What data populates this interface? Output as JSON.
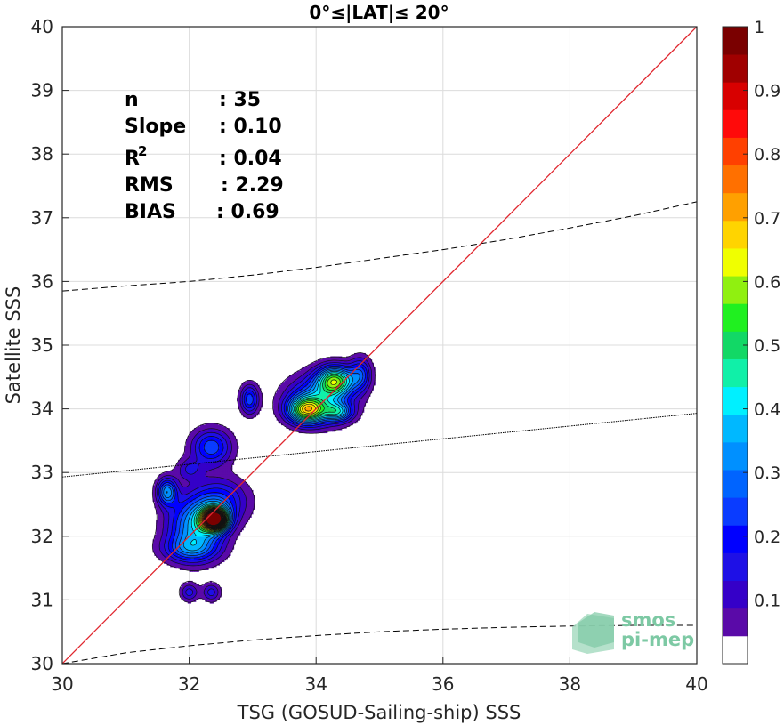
{
  "chart_data": {
    "type": "contour",
    "title": "0°≤|LAT|≤ 20°",
    "xlabel": "TSG (GOSUD-Sailing-ship) SSS",
    "ylabel": "Satellite SSS",
    "xlim": [
      30,
      40
    ],
    "ylim": [
      30,
      40
    ],
    "x_ticks": [
      30,
      32,
      34,
      36,
      38,
      40
    ],
    "y_ticks": [
      30,
      31,
      32,
      33,
      34,
      35,
      36,
      37,
      38,
      39,
      40
    ],
    "grid": true,
    "stats": [
      {
        "label": "n",
        "value": ": 35"
      },
      {
        "label": "Slope",
        "value": ": 0.10"
      },
      {
        "label": "R",
        "sup": "2",
        "value": ": 0.04"
      },
      {
        "label": "RMS",
        "value": ": 2.29"
      },
      {
        "label": "BIAS",
        "value": ": 0.69"
      }
    ],
    "identity_line": {
      "from": [
        30,
        30
      ],
      "to": [
        40,
        40
      ],
      "color": "#e0262e"
    },
    "regression_line": {
      "from": [
        30,
        32.93
      ],
      "to": [
        40,
        33.93
      ],
      "style": "dotted"
    },
    "upper_envelope": {
      "x": [
        30,
        31,
        32,
        33,
        34,
        35,
        36,
        37,
        38,
        39,
        40
      ],
      "y": [
        35.85,
        35.93,
        36.0,
        36.1,
        36.22,
        36.36,
        36.5,
        36.66,
        36.84,
        37.03,
        37.25
      ],
      "style": "dashed"
    },
    "lower_envelope": {
      "x": [
        30,
        31,
        32,
        33,
        34,
        35,
        36,
        37,
        38,
        39,
        40
      ],
      "y": [
        30.0,
        30.17,
        30.28,
        30.37,
        30.44,
        30.5,
        30.54,
        30.57,
        30.59,
        30.6,
        30.6
      ],
      "style": "dashed"
    },
    "density_peaks": [
      {
        "x": 32.4,
        "y": 32.27,
        "peak": 0.95,
        "sx": 0.14,
        "sy": 0.12
      },
      {
        "x": 32.1,
        "y": 32.15,
        "peak": 0.35,
        "sx": 0.3,
        "sy": 0.32
      },
      {
        "x": 32.5,
        "y": 32.55,
        "peak": 0.2,
        "sx": 0.3,
        "sy": 0.25
      },
      {
        "x": 32.0,
        "y": 31.8,
        "peak": 0.18,
        "sx": 0.3,
        "sy": 0.14
      },
      {
        "x": 31.65,
        "y": 32.7,
        "peak": 0.32,
        "sx": 0.11,
        "sy": 0.15
      },
      {
        "x": 32.35,
        "y": 33.4,
        "peak": 0.25,
        "sx": 0.22,
        "sy": 0.2
      },
      {
        "x": 32.0,
        "y": 33.05,
        "peak": 0.12,
        "sx": 0.14,
        "sy": 0.12
      },
      {
        "x": 32.0,
        "y": 31.12,
        "peak": 0.15,
        "sx": 0.1,
        "sy": 0.1
      },
      {
        "x": 32.35,
        "y": 31.12,
        "peak": 0.15,
        "sx": 0.1,
        "sy": 0.1
      },
      {
        "x": 32.95,
        "y": 34.15,
        "peak": 0.25,
        "sx": 0.1,
        "sy": 0.16
      },
      {
        "x": 33.85,
        "y": 33.98,
        "peak": 0.5,
        "sx": 0.2,
        "sy": 0.14
      },
      {
        "x": 34.3,
        "y": 34.45,
        "peak": 0.5,
        "sx": 0.2,
        "sy": 0.16
      },
      {
        "x": 34.05,
        "y": 34.15,
        "peak": 0.3,
        "sx": 0.35,
        "sy": 0.25
      },
      {
        "x": 34.7,
        "y": 34.55,
        "peak": 0.22,
        "sx": 0.12,
        "sy": 0.18
      },
      {
        "x": 34.35,
        "y": 33.95,
        "peak": 0.28,
        "sx": 0.15,
        "sy": 0.1
      }
    ],
    "colorbar": {
      "ticks": [
        0.1,
        0.2,
        0.3,
        0.4,
        0.5,
        0.6,
        0.7,
        0.8,
        0.9,
        1
      ],
      "tick_labels": [
        "0.1",
        "0.2",
        "0.3",
        "0.4",
        "0.5",
        "0.6",
        "0.7",
        "0.8",
        "0.9",
        "1"
      ],
      "range": [
        0,
        1
      ],
      "colors": [
        "#ffffff",
        "#5a0aa8",
        "#3500c8",
        "#1e10e6",
        "#0000ff",
        "#0a3cff",
        "#0064ff",
        "#0090ff",
        "#00b8ff",
        "#00f0ff",
        "#10f0a8",
        "#12d866",
        "#20f020",
        "#90f010",
        "#f0ff00",
        "#ffd400",
        "#ffa000",
        "#ff7000",
        "#ff4000",
        "#ff0a0a",
        "#d80000",
        "#a00000",
        "#7a0000"
      ]
    }
  },
  "logo": {
    "line1": "smos",
    "line2": "pi-mep"
  }
}
